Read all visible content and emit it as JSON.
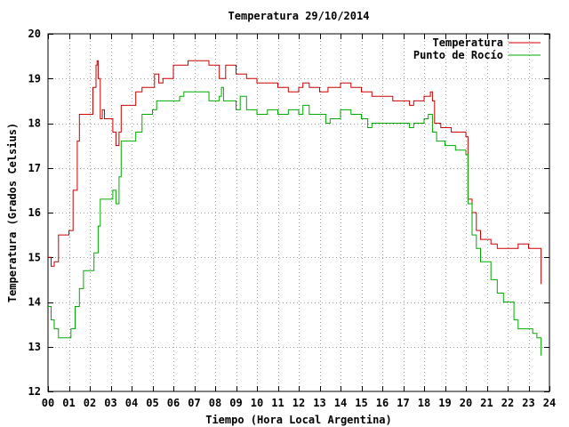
{
  "chart_data": {
    "type": "line",
    "title": "Temperatura 29/10/2014",
    "xlabel": "Tiempo (Hora Local Argentina)",
    "ylabel": "Temperatura (Grados Celsius)",
    "xlim": [
      0,
      24
    ],
    "ylim": [
      12,
      20
    ],
    "xticks": [
      "00",
      "01",
      "02",
      "03",
      "04",
      "05",
      "06",
      "07",
      "08",
      "09",
      "10",
      "11",
      "12",
      "13",
      "14",
      "15",
      "16",
      "17",
      "18",
      "19",
      "20",
      "21",
      "22",
      "23",
      "24"
    ],
    "yticks": [
      12,
      13,
      14,
      15,
      16,
      17,
      18,
      19,
      20
    ],
    "grid": true,
    "legend_position": "top-right",
    "series": [
      {
        "name": "Temperatura",
        "color": "#cc0000",
        "points": [
          [
            0.0,
            15.0
          ],
          [
            0.15,
            14.8
          ],
          [
            0.3,
            14.9
          ],
          [
            0.5,
            15.5
          ],
          [
            1.0,
            15.6
          ],
          [
            1.2,
            16.5
          ],
          [
            1.4,
            17.6
          ],
          [
            1.5,
            18.2
          ],
          [
            2.0,
            18.2
          ],
          [
            2.15,
            18.8
          ],
          [
            2.3,
            19.3
          ],
          [
            2.35,
            19.4
          ],
          [
            2.4,
            19.0
          ],
          [
            2.5,
            18.1
          ],
          [
            2.6,
            18.3
          ],
          [
            2.7,
            18.1
          ],
          [
            2.9,
            18.1
          ],
          [
            3.1,
            17.8
          ],
          [
            3.25,
            17.5
          ],
          [
            3.4,
            17.8
          ],
          [
            3.5,
            18.4
          ],
          [
            4.0,
            18.4
          ],
          [
            4.2,
            18.7
          ],
          [
            4.5,
            18.8
          ],
          [
            5.0,
            18.8
          ],
          [
            5.1,
            19.1
          ],
          [
            5.3,
            18.9
          ],
          [
            5.5,
            19.0
          ],
          [
            6.0,
            19.3
          ],
          [
            6.5,
            19.3
          ],
          [
            6.7,
            19.4
          ],
          [
            7.5,
            19.4
          ],
          [
            7.7,
            19.3
          ],
          [
            8.0,
            19.3
          ],
          [
            8.2,
            19.0
          ],
          [
            8.5,
            19.3
          ],
          [
            9.0,
            19.1
          ],
          [
            9.5,
            19.0
          ],
          [
            10.0,
            18.9
          ],
          [
            10.5,
            18.9
          ],
          [
            11.0,
            18.8
          ],
          [
            11.5,
            18.7
          ],
          [
            12.0,
            18.8
          ],
          [
            12.2,
            18.9
          ],
          [
            12.5,
            18.8
          ],
          [
            13.0,
            18.7
          ],
          [
            13.4,
            18.8
          ],
          [
            13.6,
            18.8
          ],
          [
            14.0,
            18.9
          ],
          [
            14.5,
            18.8
          ],
          [
            15.0,
            18.7
          ],
          [
            15.5,
            18.6
          ],
          [
            16.0,
            18.6
          ],
          [
            16.5,
            18.5
          ],
          [
            17.0,
            18.5
          ],
          [
            17.3,
            18.4
          ],
          [
            17.5,
            18.5
          ],
          [
            18.0,
            18.6
          ],
          [
            18.3,
            18.7
          ],
          [
            18.4,
            18.5
          ],
          [
            18.5,
            18.0
          ],
          [
            18.8,
            17.9
          ],
          [
            19.0,
            17.9
          ],
          [
            19.3,
            17.8
          ],
          [
            19.6,
            17.8
          ],
          [
            20.0,
            17.7
          ],
          [
            20.1,
            16.3
          ],
          [
            20.3,
            16.0
          ],
          [
            20.5,
            15.6
          ],
          [
            20.7,
            15.4
          ],
          [
            21.0,
            15.4
          ],
          [
            21.2,
            15.3
          ],
          [
            21.5,
            15.2
          ],
          [
            22.0,
            15.2
          ],
          [
            22.5,
            15.3
          ],
          [
            23.0,
            15.2
          ],
          [
            23.3,
            15.2
          ],
          [
            23.6,
            14.4
          ]
        ]
      },
      {
        "name": "Punto de Rocío",
        "color": "#00aa00",
        "points": [
          [
            0.0,
            13.9
          ],
          [
            0.15,
            13.6
          ],
          [
            0.3,
            13.4
          ],
          [
            0.5,
            13.2
          ],
          [
            0.8,
            13.2
          ],
          [
            1.0,
            13.2
          ],
          [
            1.1,
            13.4
          ],
          [
            1.3,
            13.9
          ],
          [
            1.5,
            14.3
          ],
          [
            1.7,
            14.7
          ],
          [
            2.0,
            14.7
          ],
          [
            2.2,
            15.1
          ],
          [
            2.4,
            15.7
          ],
          [
            2.5,
            16.3
          ],
          [
            2.8,
            16.3
          ],
          [
            3.0,
            16.3
          ],
          [
            3.1,
            16.5
          ],
          [
            3.25,
            16.2
          ],
          [
            3.4,
            16.8
          ],
          [
            3.5,
            17.6
          ],
          [
            4.0,
            17.6
          ],
          [
            4.2,
            17.8
          ],
          [
            4.5,
            18.2
          ],
          [
            5.0,
            18.3
          ],
          [
            5.2,
            18.5
          ],
          [
            5.5,
            18.5
          ],
          [
            6.0,
            18.5
          ],
          [
            6.3,
            18.6
          ],
          [
            6.5,
            18.7
          ],
          [
            7.5,
            18.7
          ],
          [
            7.7,
            18.5
          ],
          [
            8.2,
            18.6
          ],
          [
            8.3,
            18.8
          ],
          [
            8.4,
            18.5
          ],
          [
            8.8,
            18.5
          ],
          [
            9.0,
            18.3
          ],
          [
            9.2,
            18.6
          ],
          [
            9.5,
            18.3
          ],
          [
            10.0,
            18.2
          ],
          [
            10.5,
            18.3
          ],
          [
            11.0,
            18.2
          ],
          [
            11.5,
            18.3
          ],
          [
            12.0,
            18.2
          ],
          [
            12.2,
            18.4
          ],
          [
            12.5,
            18.2
          ],
          [
            13.0,
            18.2
          ],
          [
            13.3,
            18.0
          ],
          [
            13.5,
            18.1
          ],
          [
            14.0,
            18.3
          ],
          [
            14.5,
            18.2
          ],
          [
            15.0,
            18.1
          ],
          [
            15.3,
            17.9
          ],
          [
            15.5,
            18.0
          ],
          [
            16.0,
            18.0
          ],
          [
            16.5,
            18.0
          ],
          [
            17.0,
            18.0
          ],
          [
            17.3,
            17.9
          ],
          [
            17.5,
            18.0
          ],
          [
            18.0,
            18.1
          ],
          [
            18.2,
            18.2
          ],
          [
            18.4,
            17.8
          ],
          [
            18.6,
            17.6
          ],
          [
            19.0,
            17.5
          ],
          [
            19.5,
            17.4
          ],
          [
            20.0,
            17.3
          ],
          [
            20.1,
            16.2
          ],
          [
            20.3,
            15.5
          ],
          [
            20.5,
            15.2
          ],
          [
            20.7,
            14.9
          ],
          [
            21.0,
            14.9
          ],
          [
            21.2,
            14.5
          ],
          [
            21.5,
            14.2
          ],
          [
            21.8,
            14.0
          ],
          [
            22.0,
            14.0
          ],
          [
            22.3,
            13.6
          ],
          [
            22.5,
            13.4
          ],
          [
            23.0,
            13.4
          ],
          [
            23.2,
            13.3
          ],
          [
            23.4,
            13.2
          ],
          [
            23.6,
            12.8
          ]
        ]
      }
    ]
  }
}
